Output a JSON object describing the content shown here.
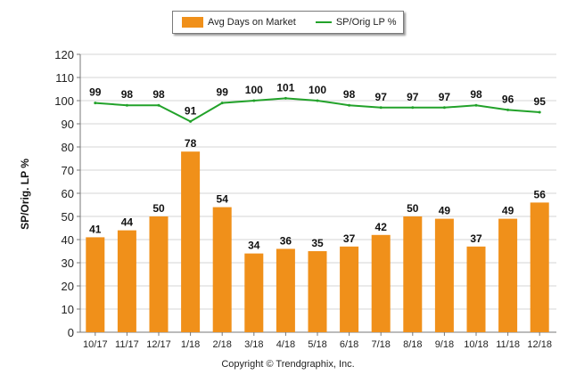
{
  "chart_data": {
    "type": "bar+line",
    "title": "",
    "xlabel": "",
    "ylabel": "SP/Orig. LP %",
    "ylim": [
      0,
      120
    ],
    "yticks": [
      0,
      10,
      20,
      30,
      40,
      50,
      60,
      70,
      80,
      90,
      100,
      110,
      120
    ],
    "grid": true,
    "legend_position": "top-center",
    "categories": [
      "10/17",
      "11/17",
      "12/17",
      "1/18",
      "2/18",
      "3/18",
      "4/18",
      "5/18",
      "6/18",
      "7/18",
      "8/18",
      "9/18",
      "10/18",
      "11/18",
      "12/18"
    ],
    "series": [
      {
        "name": "Avg Days on Market",
        "type": "bar",
        "color": "#f0901a",
        "values": [
          41,
          44,
          50,
          78,
          54,
          34,
          36,
          35,
          37,
          42,
          50,
          49,
          37,
          49,
          56
        ]
      },
      {
        "name": "SP/Orig LP %",
        "type": "line",
        "color": "#22a22a",
        "values": [
          99,
          98,
          98,
          91,
          99,
          100,
          101,
          100,
          98,
          97,
          97,
          97,
          98,
          96,
          95
        ]
      }
    ]
  },
  "footer": {
    "copyright": "Copyright © Trendgraphix, Inc."
  }
}
